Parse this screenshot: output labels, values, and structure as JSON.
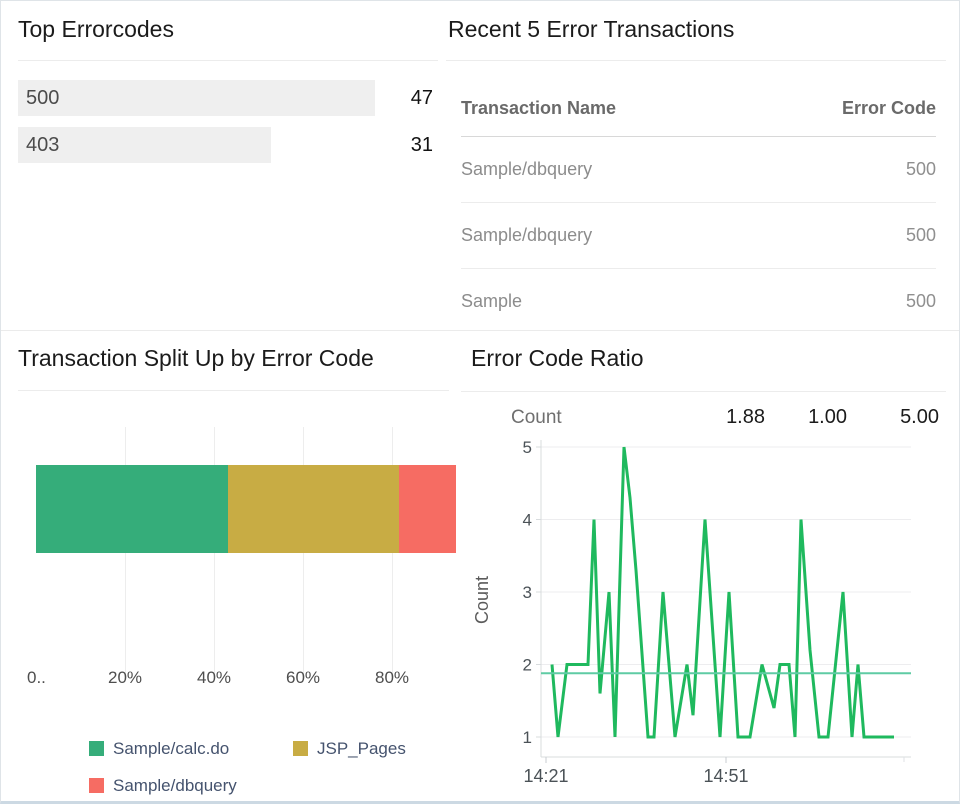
{
  "panels": {
    "top_errorcodes": {
      "title": "Top Errorcodes"
    },
    "recent_transactions": {
      "title": "Recent 5 Error Transactions"
    },
    "split_up": {
      "title": "Transaction Split Up by Error Code"
    },
    "error_ratio": {
      "title": "Error Code Ratio",
      "stats_label": "Count",
      "stats_values": [
        "1.88",
        "1.00",
        "5.00"
      ]
    }
  },
  "chart_data": [
    {
      "id": "top-errorcodes",
      "type": "bar",
      "orientation": "horizontal",
      "categories": [
        "500",
        "403"
      ],
      "values": [
        47,
        31
      ],
      "bar_pcts": [
        86,
        61
      ],
      "bar_color": "#efefef"
    },
    {
      "id": "recent-5-error-transactions",
      "type": "table",
      "columns": [
        "Transaction Name",
        "Error Code"
      ],
      "rows": [
        [
          "Sample/dbquery",
          "500"
        ],
        [
          "Sample/dbquery",
          "500"
        ],
        [
          "Sample",
          "500"
        ]
      ]
    },
    {
      "id": "transaction-split-by-error-code",
      "type": "bar",
      "stacked": true,
      "orientation": "horizontal",
      "series": [
        {
          "name": "Sample/calc.do",
          "pct": 43.1,
          "color": "#35ad7a"
        },
        {
          "name": "JSP_Pages",
          "pct": 38.4,
          "color": "#c8ac44"
        },
        {
          "name": "Sample/dbquery",
          "pct": 18.5,
          "color": "#f66c63"
        }
      ],
      "x_ticks": [
        "0..",
        "20%",
        "40%",
        "60%",
        "80%"
      ],
      "x_tick_pcts": [
        0,
        20,
        40,
        60,
        80
      ],
      "clipped_right": true
    },
    {
      "id": "error-code-ratio",
      "type": "line",
      "title": "Error Code Ratio",
      "ylabel": "Count",
      "ylim": [
        1,
        5
      ],
      "color": "#1fb95e",
      "avg": 1.88,
      "min": 1.0,
      "max": 5.0,
      "avg_line_color": "#5fcba4",
      "x_ticks": [
        {
          "label": "14:21",
          "t": 0
        },
        {
          "label": "14:51",
          "t": 30
        }
      ],
      "points": [
        [
          1,
          2
        ],
        [
          2,
          1
        ],
        [
          3.5,
          2
        ],
        [
          7,
          2
        ],
        [
          8,
          4
        ],
        [
          9,
          1.6
        ],
        [
          10.5,
          3
        ],
        [
          11.5,
          1
        ],
        [
          13,
          5
        ],
        [
          14,
          4.3
        ],
        [
          15,
          3.3
        ],
        [
          17,
          1
        ],
        [
          18,
          1
        ],
        [
          19.5,
          3
        ],
        [
          21.5,
          1
        ],
        [
          23.5,
          2
        ],
        [
          24.5,
          1.3
        ],
        [
          26.5,
          4
        ],
        [
          29,
          1
        ],
        [
          30.5,
          3
        ],
        [
          32,
          1
        ],
        [
          34,
          1
        ],
        [
          36,
          2
        ],
        [
          38,
          1.4
        ],
        [
          39,
          2
        ],
        [
          40.5,
          2
        ],
        [
          41.5,
          1
        ],
        [
          42.5,
          4
        ],
        [
          44,
          2.2
        ],
        [
          45.5,
          1
        ],
        [
          47,
          1
        ],
        [
          49.5,
          3
        ],
        [
          51,
          1
        ],
        [
          52,
          2
        ],
        [
          53,
          1
        ],
        [
          54,
          1
        ],
        [
          58,
          1
        ]
      ]
    }
  ]
}
